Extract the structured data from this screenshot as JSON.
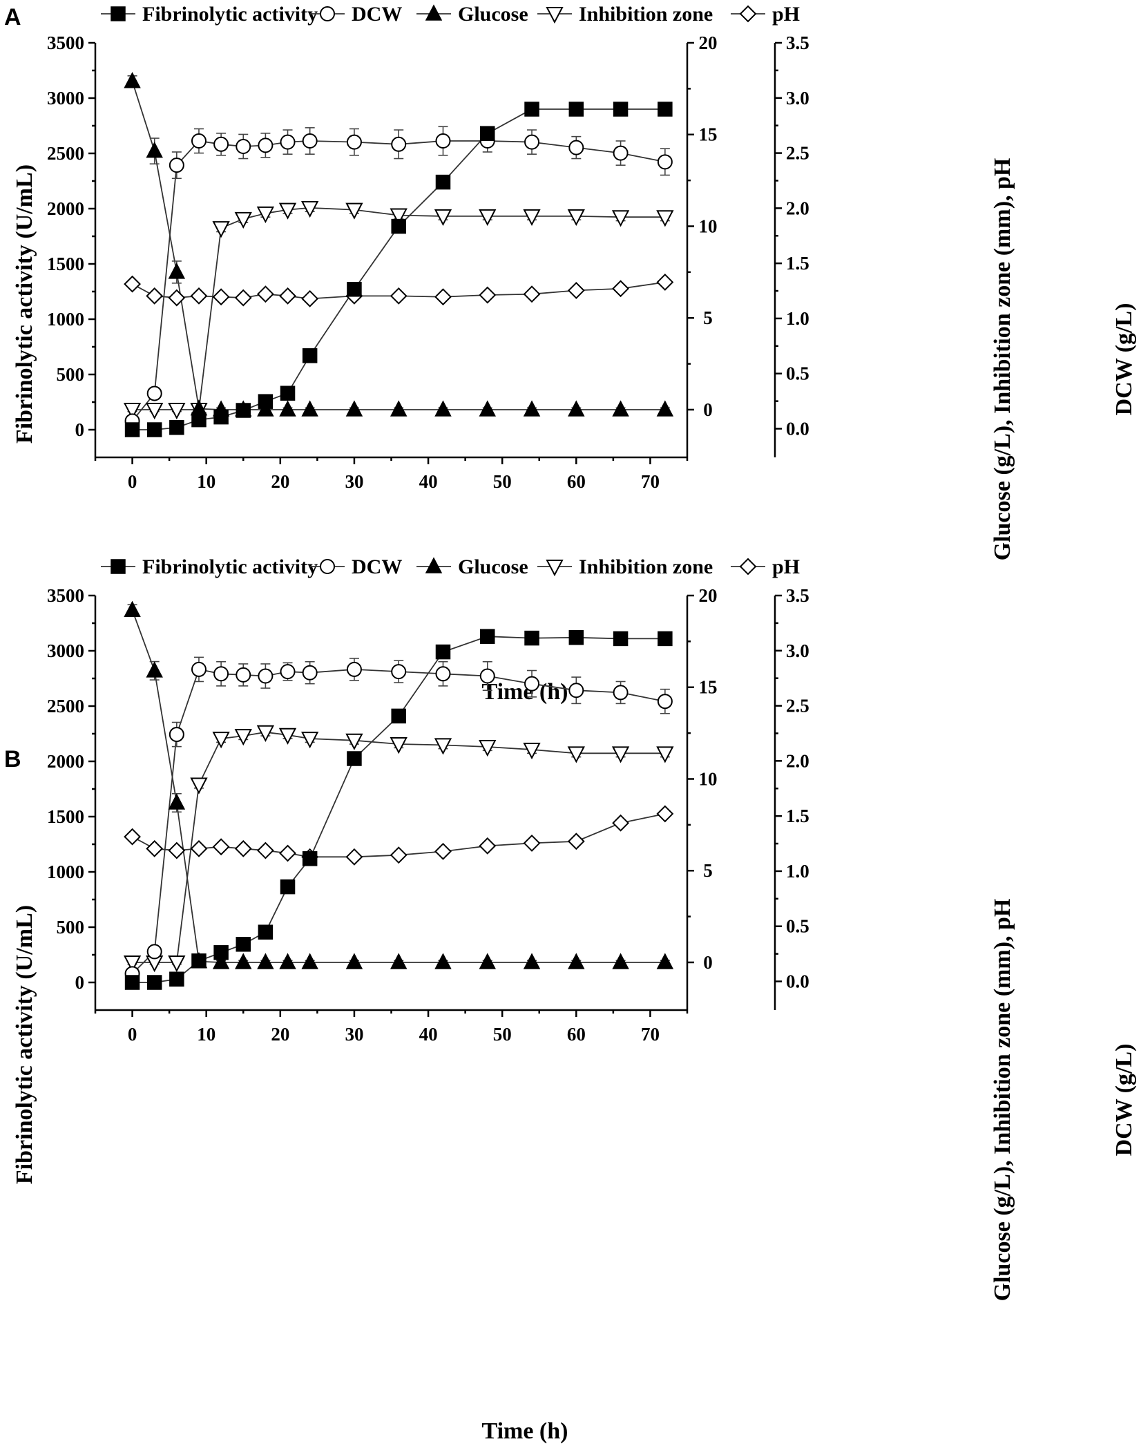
{
  "colors": {
    "axis": "#000000",
    "line": "#333333",
    "fill_solid": "#000000",
    "fill_open": "#ffffff"
  },
  "legend": [
    {
      "name": "Fibrinolytic activity",
      "marker": "square-filled"
    },
    {
      "name": "DCW",
      "marker": "circle-open"
    },
    {
      "name": "Glucose",
      "marker": "triangle-up-filled"
    },
    {
      "name": "Inhibition zone",
      "marker": "triangle-down-open"
    },
    {
      "name": "pH",
      "marker": "diamond-open"
    }
  ],
  "chart_data": [
    {
      "panel_label": "A",
      "type": "line",
      "xlabel": "Time (h)",
      "xlim": [
        -5,
        75
      ],
      "xticks": [
        "0",
        "10",
        "20",
        "30",
        "40",
        "50",
        "60",
        "70"
      ],
      "y1": {
        "label": "Fibrinolytic activity (U/mL)",
        "lim": [
          -250,
          3500
        ],
        "ticks": [
          "0",
          "500",
          "1000",
          "1500",
          "2000",
          "2500",
          "3000",
          "3500"
        ]
      },
      "y2": {
        "label": "Glucose (g/L), Inhibition zone (mm), pH",
        "lim": [
          -2.6,
          20
        ],
        "ticks": [
          "0",
          "5",
          "10",
          "15",
          "20"
        ]
      },
      "y3": {
        "label": "DCW (g/L)",
        "lim": [
          -0.26,
          3.5
        ],
        "ticks": [
          "0.0",
          "0.5",
          "1.0",
          "1.5",
          "2.0",
          "2.5",
          "3.0",
          "3.5"
        ]
      },
      "series": [
        {
          "name": "Fibrinolytic activity",
          "axis": "y1",
          "marker": "square-filled",
          "x": [
            0,
            3,
            6,
            9,
            12,
            15,
            18,
            21,
            24,
            30,
            36,
            42,
            48,
            54,
            60,
            66,
            72
          ],
          "y": [
            0,
            0,
            20,
            90,
            115,
            175,
            255,
            330,
            670,
            1270,
            1840,
            2240,
            2680,
            2900,
            2900,
            2900,
            2900
          ],
          "err": [
            10,
            10,
            15,
            20,
            25,
            25,
            25,
            30,
            30,
            60,
            50,
            50,
            40,
            50,
            50,
            30,
            50
          ]
        },
        {
          "name": "DCW",
          "axis": "y3",
          "marker": "circle-open",
          "x": [
            0,
            3,
            6,
            9,
            12,
            15,
            18,
            21,
            24,
            30,
            36,
            42,
            48,
            54,
            60,
            66,
            72
          ],
          "y": [
            0.07,
            0.32,
            2.39,
            2.61,
            2.58,
            2.56,
            2.57,
            2.6,
            2.61,
            2.6,
            2.58,
            2.61,
            2.61,
            2.6,
            2.55,
            2.5,
            2.42
          ],
          "err": [
            0.02,
            0.03,
            0.12,
            0.11,
            0.1,
            0.11,
            0.11,
            0.11,
            0.12,
            0.12,
            0.13,
            0.13,
            0.1,
            0.11,
            0.1,
            0.11,
            0.12
          ]
        },
        {
          "name": "Glucose",
          "axis": "y2",
          "marker": "triangle-up-filled",
          "x": [
            0,
            3,
            6,
            9,
            12,
            15,
            18,
            21,
            24,
            30,
            36,
            42,
            48,
            54,
            60,
            66,
            72
          ],
          "y": [
            17.9,
            14.1,
            7.5,
            0.05,
            0,
            0,
            0,
            0,
            0,
            0,
            0,
            0,
            0,
            0,
            0,
            0,
            0
          ],
          "err": [
            0.3,
            0.7,
            0.6,
            0.1,
            0.1,
            0.1,
            0.1,
            0.1,
            0.1,
            0.1,
            0.1,
            0.1,
            0.1,
            0.1,
            0.1,
            0.1,
            0.1
          ]
        },
        {
          "name": "Inhibition zone",
          "axis": "y2",
          "marker": "triangle-down-open",
          "x": [
            0,
            3,
            6,
            9,
            12,
            15,
            18,
            21,
            24,
            30,
            36,
            42,
            48,
            54,
            60,
            66,
            72
          ],
          "y": [
            0,
            0,
            0,
            0,
            9.9,
            10.4,
            10.7,
            10.9,
            11.0,
            10.9,
            10.6,
            10.55,
            10.55,
            10.55,
            10.55,
            10.5,
            10.5
          ],
          "err": [
            0.1,
            0.1,
            0.1,
            0.1,
            0.2,
            0.2,
            0.2,
            0.2,
            0.2,
            0.2,
            0.2,
            0.2,
            0.2,
            0.2,
            0.2,
            0.2,
            0.2
          ]
        },
        {
          "name": "pH",
          "axis": "y2",
          "marker": "diamond-open",
          "x": [
            0,
            3,
            6,
            9,
            12,
            15,
            18,
            21,
            24,
            30,
            36,
            42,
            48,
            54,
            60,
            66,
            72
          ],
          "y": [
            6.85,
            6.2,
            6.1,
            6.2,
            6.15,
            6.1,
            6.3,
            6.2,
            6.05,
            6.2,
            6.2,
            6.15,
            6.25,
            6.3,
            6.5,
            6.6,
            6.95
          ],
          "err": [
            0.05,
            0.05,
            0.05,
            0.05,
            0.05,
            0.05,
            0.05,
            0.05,
            0.05,
            0.05,
            0.05,
            0.05,
            0.05,
            0.05,
            0.05,
            0.05,
            0.05
          ]
        }
      ]
    },
    {
      "panel_label": "B",
      "type": "line",
      "xlabel": "Time (h)",
      "xlim": [
        -5,
        75
      ],
      "xticks": [
        "0",
        "10",
        "20",
        "30",
        "40",
        "50",
        "60",
        "70"
      ],
      "y1": {
        "label": "Fibrinolytic activity (U/mL)",
        "lim": [
          -250,
          3500
        ],
        "ticks": [
          "0",
          "500",
          "1000",
          "1500",
          "2000",
          "2500",
          "3000",
          "3500"
        ]
      },
      "y2": {
        "label": "Glucose (g/L), Inhibition zone (mm), pH",
        "lim": [
          -2.6,
          20
        ],
        "ticks": [
          "0",
          "5",
          "10",
          "15",
          "20"
        ]
      },
      "y3": {
        "label": "DCW (g/L)",
        "lim": [
          -0.26,
          3.5
        ],
        "ticks": [
          "0.0",
          "0.5",
          "1.0",
          "1.5",
          "2.0",
          "2.5",
          "3.0",
          "3.5"
        ]
      },
      "series": [
        {
          "name": "Fibrinolytic activity",
          "axis": "y1",
          "marker": "square-filled",
          "x": [
            0,
            3,
            6,
            9,
            12,
            15,
            18,
            21,
            24,
            30,
            36,
            42,
            48,
            54,
            60,
            66,
            72
          ],
          "y": [
            0,
            0,
            30,
            195,
            270,
            345,
            455,
            865,
            1120,
            2025,
            2410,
            2990,
            3130,
            3115,
            3120,
            3110,
            3110
          ],
          "err": [
            10,
            10,
            15,
            25,
            25,
            25,
            25,
            30,
            40,
            60,
            60,
            40,
            60,
            50,
            60,
            50,
            40
          ]
        },
        {
          "name": "DCW",
          "axis": "y3",
          "marker": "circle-open",
          "x": [
            0,
            3,
            6,
            9,
            12,
            15,
            18,
            21,
            24,
            30,
            36,
            42,
            48,
            54,
            60,
            66,
            72
          ],
          "y": [
            0.07,
            0.27,
            2.24,
            2.83,
            2.79,
            2.78,
            2.77,
            2.81,
            2.8,
            2.83,
            2.81,
            2.79,
            2.77,
            2.7,
            2.64,
            2.62,
            2.54
          ],
          "err": [
            0.02,
            0.03,
            0.11,
            0.11,
            0.11,
            0.1,
            0.11,
            0.08,
            0.1,
            0.1,
            0.1,
            0.11,
            0.13,
            0.12,
            0.12,
            0.1,
            0.11
          ]
        },
        {
          "name": "Glucose",
          "axis": "y2",
          "marker": "triangle-up-filled",
          "x": [
            0,
            3,
            6,
            9,
            12,
            15,
            18,
            21,
            24,
            30,
            36,
            42,
            48,
            54,
            60,
            66,
            72
          ],
          "y": [
            19.2,
            15.9,
            8.7,
            0.05,
            0,
            0,
            0,
            0,
            0,
            0,
            0,
            0,
            0,
            0,
            0,
            0,
            0
          ],
          "err": [
            0.3,
            0.5,
            0.5,
            0.1,
            0.1,
            0.1,
            0.1,
            0.1,
            0.1,
            0.1,
            0.1,
            0.1,
            0.1,
            0.1,
            0.1,
            0.1,
            0.1
          ]
        },
        {
          "name": "Inhibition zone",
          "axis": "y2",
          "marker": "triangle-down-open",
          "x": [
            0,
            3,
            6,
            9,
            12,
            15,
            18,
            21,
            24,
            30,
            36,
            42,
            48,
            54,
            60,
            66,
            72
          ],
          "y": [
            0,
            0,
            0,
            9.7,
            12.2,
            12.35,
            12.55,
            12.4,
            12.2,
            12.1,
            11.9,
            11.85,
            11.75,
            11.6,
            11.4,
            11.4,
            11.4
          ],
          "err": [
            0.1,
            0.1,
            0.1,
            0.2,
            0.2,
            0.2,
            0.2,
            0.2,
            0.2,
            0.2,
            0.2,
            0.2,
            0.2,
            0.2,
            0.2,
            0.2,
            0.2
          ]
        },
        {
          "name": "pH",
          "axis": "y2",
          "marker": "diamond-open",
          "x": [
            0,
            3,
            6,
            9,
            12,
            15,
            18,
            21,
            24,
            30,
            36,
            42,
            48,
            54,
            60,
            66,
            72
          ],
          "y": [
            6.85,
            6.2,
            6.1,
            6.2,
            6.3,
            6.2,
            6.1,
            5.95,
            5.75,
            5.75,
            5.85,
            6.05,
            6.35,
            6.5,
            6.6,
            7.6,
            8.1
          ],
          "err": [
            0.05,
            0.05,
            0.05,
            0.05,
            0.05,
            0.05,
            0.05,
            0.05,
            0.05,
            0.05,
            0.05,
            0.05,
            0.05,
            0.05,
            0.05,
            0.05,
            0.05
          ]
        }
      ]
    }
  ]
}
